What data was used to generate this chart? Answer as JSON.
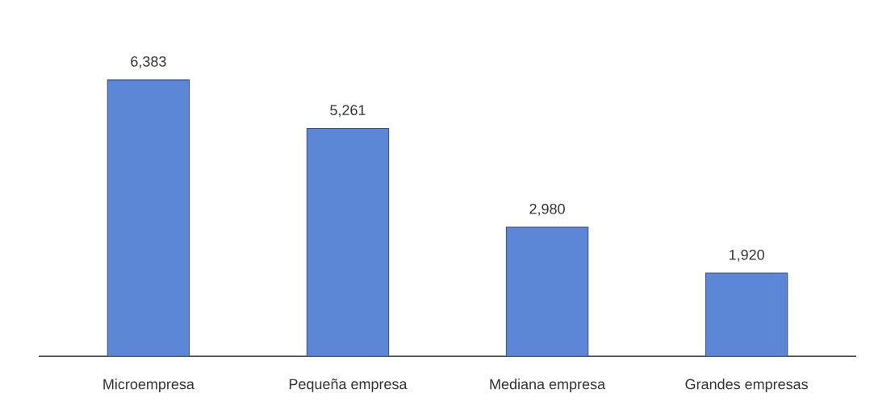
{
  "chart_data": {
    "type": "bar",
    "categories": [
      "Microempresa",
      "Pequeña empresa",
      "Mediana empresa",
      "Grandes empresas"
    ],
    "values": [
      6383,
      5261,
      2980,
      1920
    ],
    "value_labels": [
      "6,383",
      "5,261",
      "2,980",
      "1,920"
    ],
    "color": "#5b87d6"
  }
}
